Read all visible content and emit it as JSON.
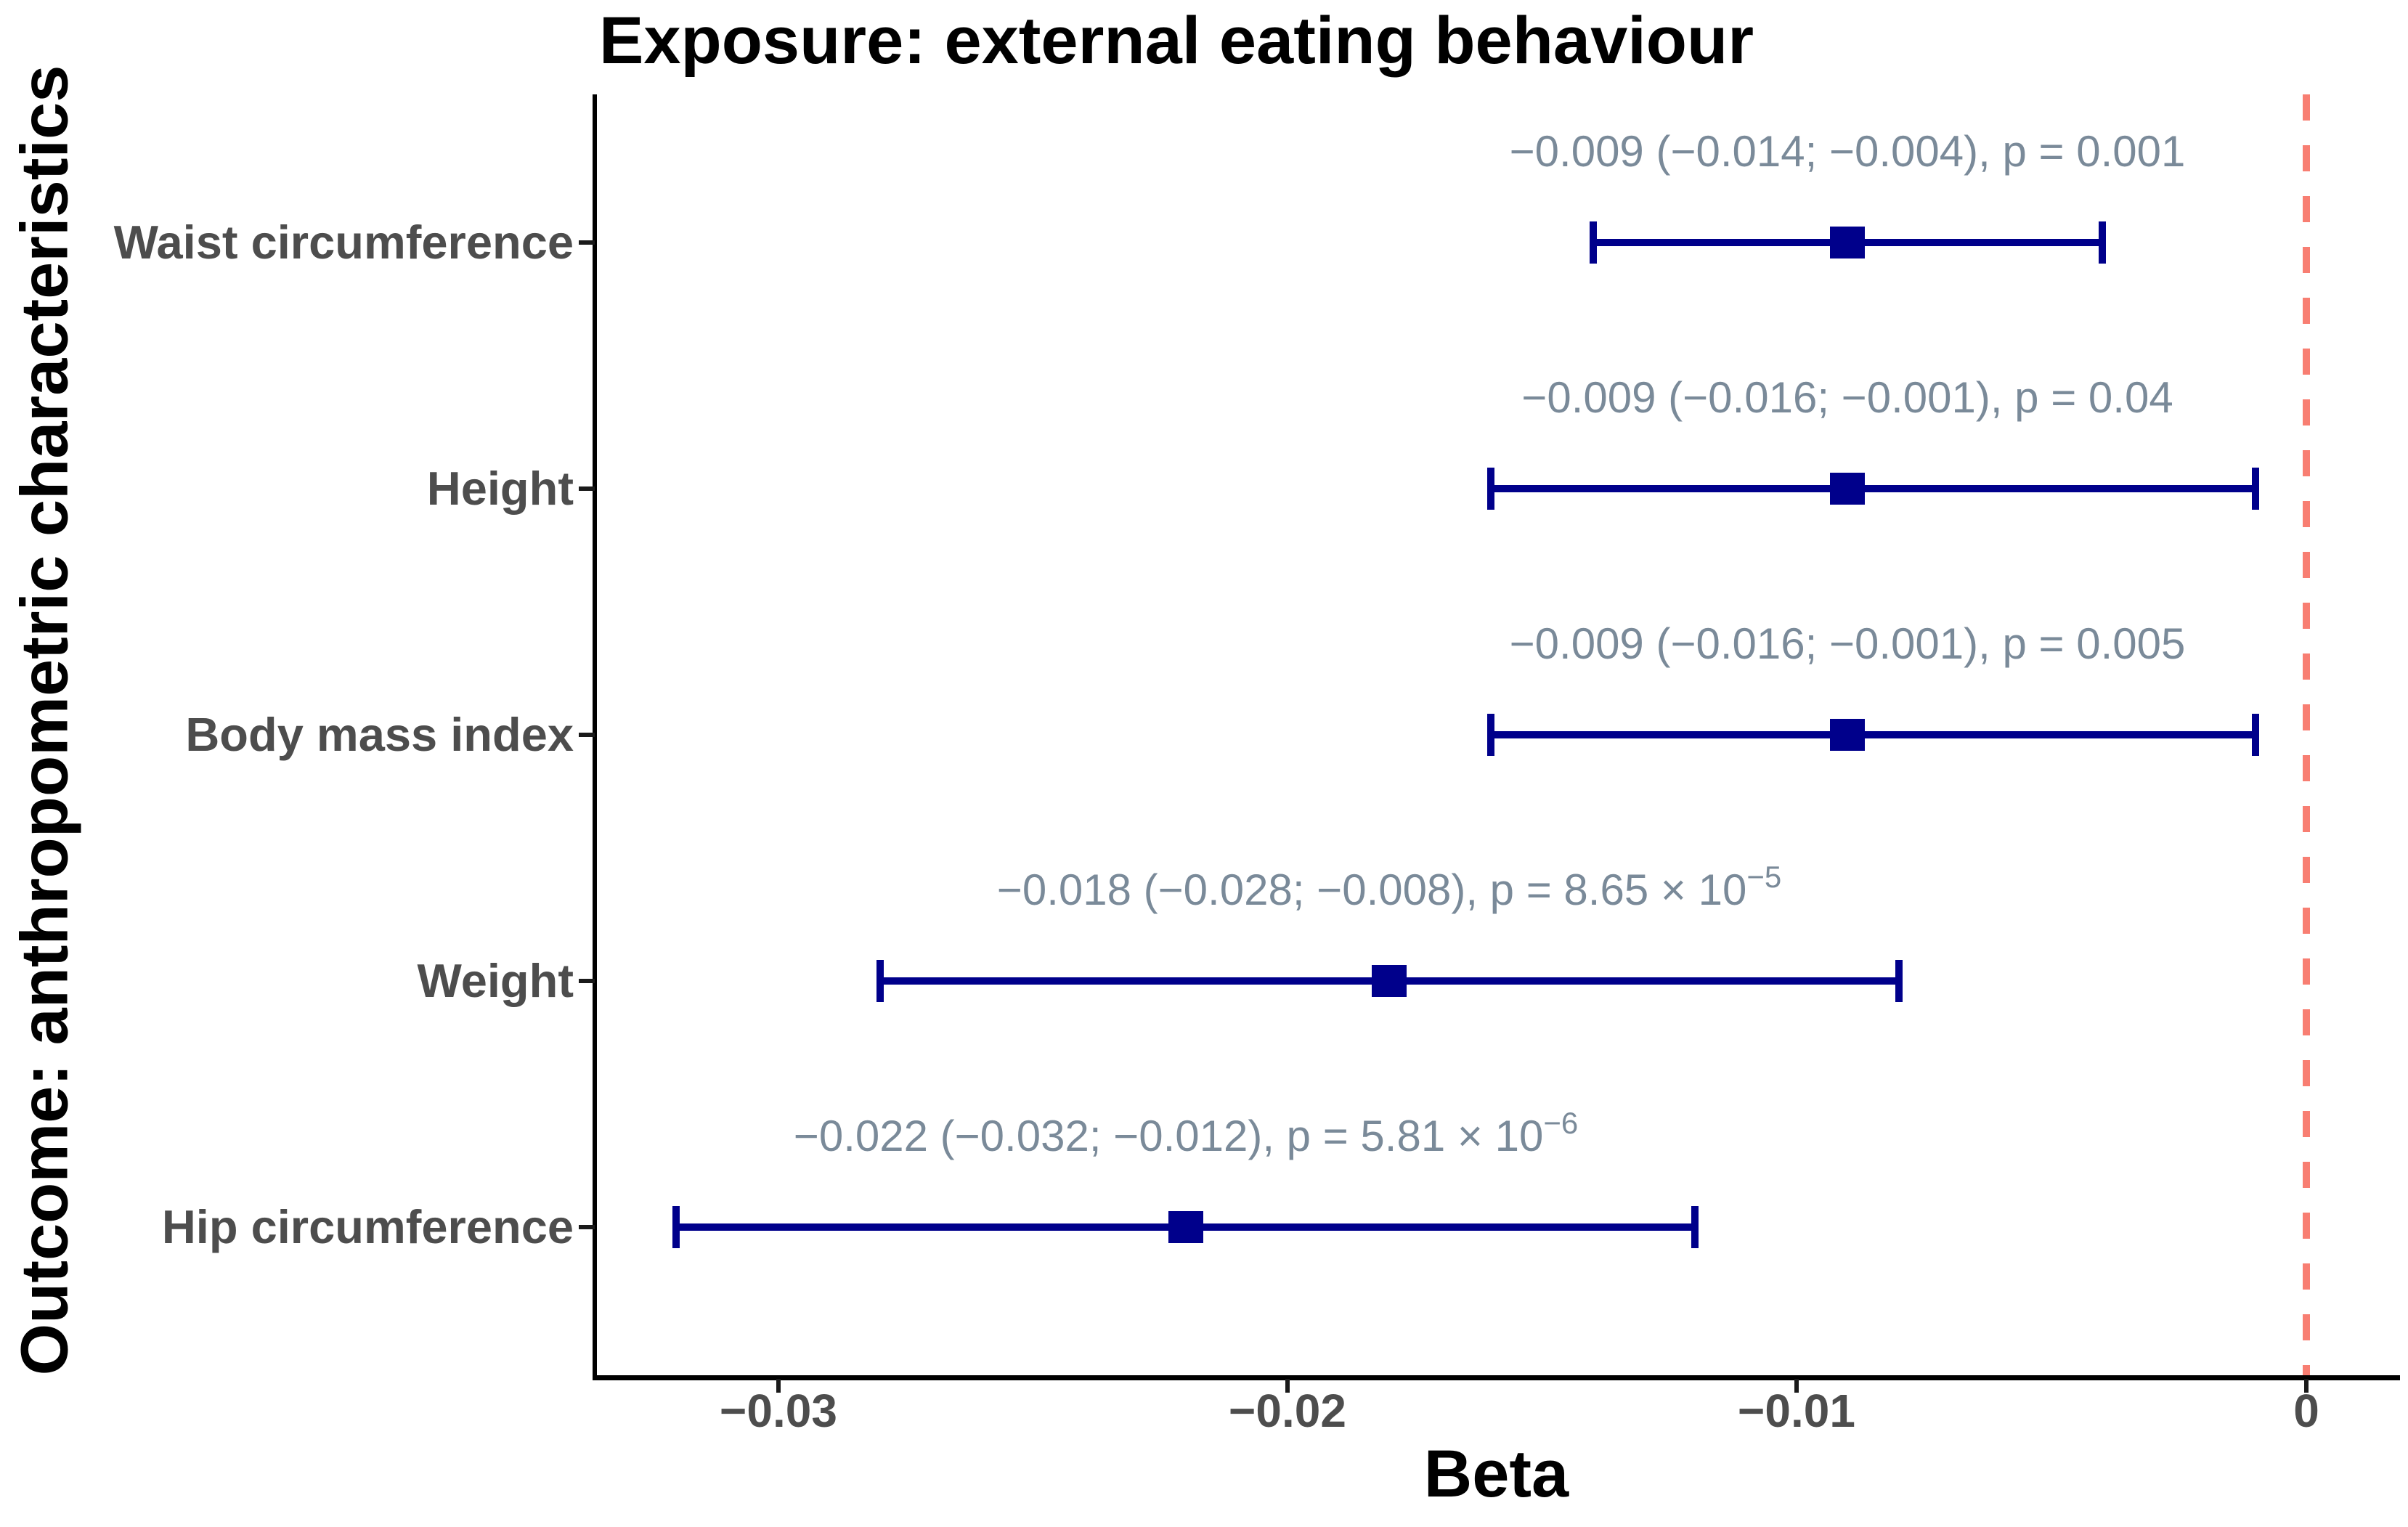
{
  "chart_data": {
    "type": "scatter",
    "variant": "forest-plot-horizontal-error-bars",
    "title": "Exposure: external eating behaviour",
    "xlabel": "Beta",
    "ylabel": "Outcome: anthropometric characteristics",
    "xlim": [
      -0.0336,
      0.0018
    ],
    "grid": "off",
    "x_ticks": [
      {
        "value": -0.03,
        "label": "−0.03"
      },
      {
        "value": -0.02,
        "label": "−0.02"
      },
      {
        "value": -0.01,
        "label": "−0.01"
      },
      {
        "value": 0,
        "label": "0"
      }
    ],
    "zero_reference_line": {
      "x": 0,
      "style": "dashed"
    },
    "rows": [
      {
        "category": "Waist circumference",
        "beta": -0.009,
        "ci_low": -0.014,
        "ci_high": -0.004,
        "p": "0.001",
        "annotation": "−0.009 (−0.014; −0.004), p = 0.001",
        "annotation_sup": ""
      },
      {
        "category": "Height",
        "beta": -0.009,
        "ci_low": -0.016,
        "ci_high": -0.001,
        "p": "0.04",
        "annotation": "−0.009 (−0.016; −0.001), p = 0.04",
        "annotation_sup": ""
      },
      {
        "category": "Body mass index",
        "beta": -0.009,
        "ci_low": -0.016,
        "ci_high": -0.001,
        "p": "0.005",
        "annotation": "−0.009 (−0.016; −0.001), p = 0.005",
        "annotation_sup": ""
      },
      {
        "category": "Weight",
        "beta": -0.018,
        "ci_low": -0.028,
        "ci_high": -0.008,
        "p": "8.65 × 10^−5",
        "annotation": "−0.018 (−0.028; −0.008), p = 8.65 × 10",
        "annotation_sup": "−5"
      },
      {
        "category": "Hip circumference",
        "beta": -0.022,
        "ci_low": -0.032,
        "ci_high": -0.012,
        "p": "5.81 × 10^−6",
        "annotation": "−0.022 (−0.032; −0.012), p = 5.81 × 10",
        "annotation_sup": "−6"
      }
    ],
    "colors": {
      "point_and_error_bars": "#00008B",
      "zero_line": "#F87E72",
      "annotation_text": "#7A8A99",
      "axis_text": "#4D4D4D",
      "axis_line": "#000000",
      "background": "#FFFFFF"
    }
  }
}
